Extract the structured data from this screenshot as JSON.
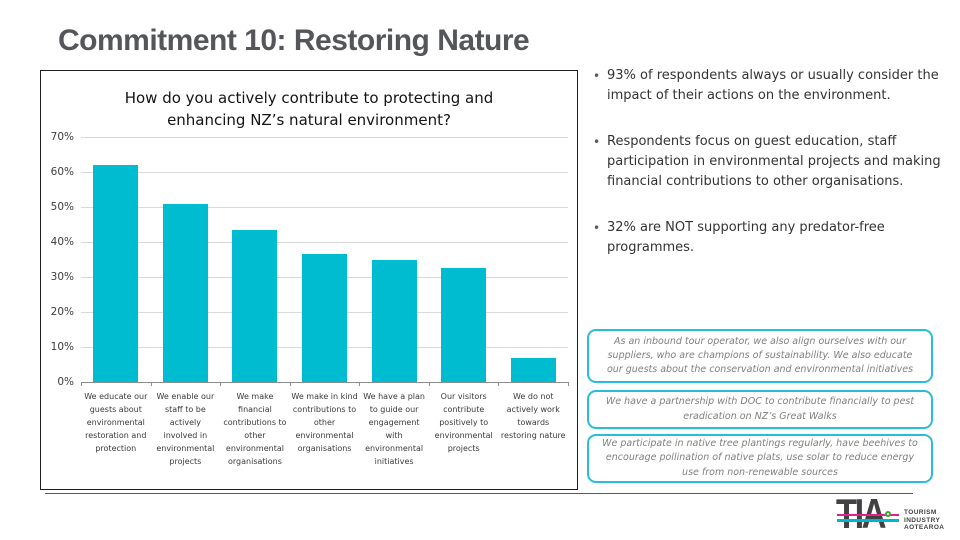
{
  "slide": {
    "title": "Commitment 10: Restoring Nature"
  },
  "chart_data": {
    "type": "bar",
    "title": "How do you actively contribute to protecting and enhancing NZ’s natural environment?",
    "categories": [
      "We educate our guests about environmental restoration and protection",
      "We enable our staff to be actively involved in environmental projects",
      "We make financial contributions to other environmental organisations",
      "We make in kind contributions to other environmental organisations",
      "We have a plan to guide our engagement with environmental initiatives",
      "Our visitors contribute positively to environmental projects",
      "We do not actively work towards restoring nature"
    ],
    "values": [
      62,
      51,
      43.5,
      36.5,
      35,
      32.5,
      7
    ],
    "xlabel": "",
    "ylabel": "",
    "ylim": [
      0,
      70
    ],
    "ytick_step": 10,
    "ytick_suffix": "%",
    "grid": true,
    "legend": false,
    "bar_color": "#00bcd1"
  },
  "bullets": [
    "93% of respondents always or usually consider the impact of their actions on the environment.",
    "Respondents focus on guest education, staff participation in environmental projects and making financial contributions to other organisations.",
    "32% are NOT supporting any predator-free programmes."
  ],
  "quotes": [
    "As an inbound tour operator, we also align ourselves with our suppliers, who are champions of sustainability. We also educate our guests about the conservation and environmental initiatives",
    "We have a partnership with DOC to contribute financially to pest eradication on NZ’s Great Walks",
    "We participate in native tree plantings regularly, have beehives to encourage pollination of native plats, use solar to reduce energy use from non-renewable sources"
  ],
  "logo": {
    "text": "TIA",
    "caption_lines": [
      "TOURISM",
      "INDUSTRY",
      "AOTEAROA"
    ]
  },
  "colors": {
    "bar_cyan": "#00bcd1",
    "quote_border": "#2bbcd9",
    "title_gray": "#54565a",
    "body_text": "#333333",
    "quote_text": "#7f7f7f",
    "logo_charcoal": "#414042",
    "logo_magenta": "#e0218a",
    "logo_cyan": "#00b5d1",
    "logo_green": "#3fa535"
  }
}
